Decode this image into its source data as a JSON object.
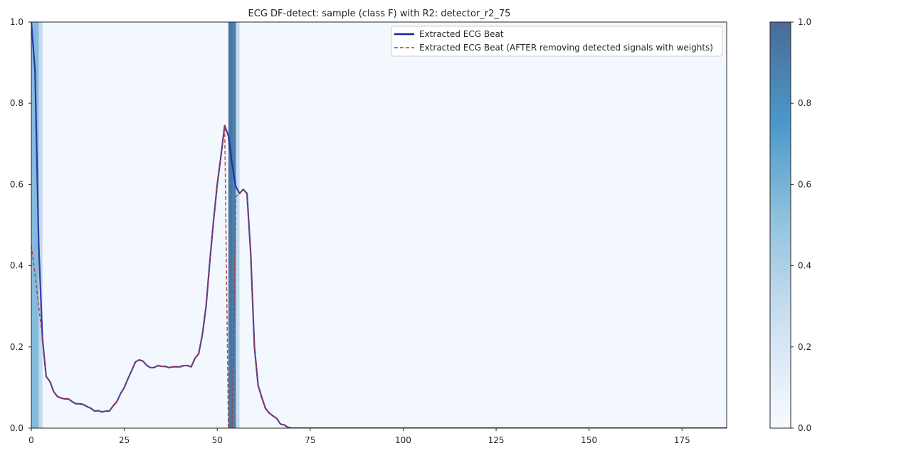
{
  "chart_data": {
    "type": "line",
    "title": "ECG DF-detect: sample (class F) with R2: detector_r2_75",
    "xlabel": "",
    "ylabel": "",
    "xlim": [
      0,
      187
    ],
    "ylim": [
      0,
      1
    ],
    "x_ticks": [
      0,
      25,
      50,
      75,
      100,
      125,
      150,
      175
    ],
    "y_ticks": [
      "0.0",
      "0.2",
      "0.4",
      "0.6",
      "0.8",
      "1.0"
    ],
    "grid": false,
    "legend": "top-right",
    "series": [
      {
        "name": "Extracted ECG Beat",
        "color": "#1f1f9e",
        "style": "solid",
        "values": [
          1.0,
          0.88,
          0.45,
          0.22,
          0.127,
          0.115,
          0.09,
          0.078,
          0.074,
          0.072,
          0.072,
          0.065,
          0.06,
          0.06,
          0.058,
          0.053,
          0.049,
          0.042,
          0.043,
          0.04,
          0.042,
          0.042,
          0.055,
          0.065,
          0.085,
          0.1,
          0.122,
          0.142,
          0.163,
          0.168,
          0.165,
          0.155,
          0.149,
          0.149,
          0.154,
          0.152,
          0.152,
          0.149,
          0.151,
          0.151,
          0.151,
          0.154,
          0.154,
          0.151,
          0.172,
          0.183,
          0.23,
          0.3,
          0.41,
          0.51,
          0.6,
          0.67,
          0.745,
          0.72,
          0.65,
          0.595,
          0.578,
          0.588,
          0.578,
          0.43,
          0.2,
          0.105,
          0.075,
          0.048,
          0.037,
          0.03,
          0.024,
          0.01,
          0.008,
          0.002,
          0.0,
          0.0,
          0.0,
          0.0,
          0.0,
          0.0,
          0.0,
          0.0,
          0.0,
          0.0,
          0.0,
          0.0,
          0.0,
          0.0,
          0.0,
          0.0,
          0.0,
          0.0,
          0.0,
          0.0,
          0.0,
          0.0,
          0.0,
          0.0,
          0.0,
          0.0,
          0.0,
          0.0,
          0.0,
          0.0,
          0.0,
          0.0,
          0.0,
          0.0,
          0.0,
          0.0,
          0.0,
          0.0,
          0.0,
          0.0,
          0.0,
          0.0,
          0.0,
          0.0,
          0.0,
          0.0,
          0.0,
          0.0,
          0.0,
          0.0,
          0.0,
          0.0,
          0.0,
          0.0,
          0.0,
          0.0,
          0.0,
          0.0,
          0.0,
          0.0,
          0.0,
          0.0,
          0.0,
          0.0,
          0.0,
          0.0,
          0.0,
          0.0,
          0.0,
          0.0,
          0.0,
          0.0,
          0.0,
          0.0,
          0.0,
          0.0,
          0.0,
          0.0,
          0.0,
          0.0,
          0.0,
          0.0,
          0.0,
          0.0,
          0.0,
          0.0,
          0.0,
          0.0,
          0.0,
          0.0,
          0.0,
          0.0,
          0.0,
          0.0,
          0.0,
          0.0,
          0.0,
          0.0,
          0.0,
          0.0,
          0.0,
          0.0,
          0.0,
          0.0,
          0.0,
          0.0,
          0.0,
          0.0,
          0.0,
          0.0,
          0.0,
          0.0,
          0.0,
          0.0,
          0.0,
          0.0,
          0.0,
          0.0,
          0.0,
          0.0,
          0.0,
          0.0,
          0.0
        ]
      },
      {
        "name": "Extracted ECG Beat (AFTER removing detected signals with weights)",
        "color": "#b03a3a",
        "style": "dashed",
        "values": [
          0.45,
          0.38,
          0.3,
          0.22,
          0.127,
          0.115,
          0.09,
          0.078,
          0.074,
          0.072,
          0.072,
          0.065,
          0.06,
          0.06,
          0.058,
          0.053,
          0.049,
          0.042,
          0.043,
          0.04,
          0.042,
          0.042,
          0.055,
          0.065,
          0.085,
          0.1,
          0.122,
          0.142,
          0.163,
          0.168,
          0.165,
          0.155,
          0.149,
          0.149,
          0.154,
          0.152,
          0.152,
          0.149,
          0.151,
          0.151,
          0.151,
          0.154,
          0.154,
          0.151,
          0.172,
          0.183,
          0.23,
          0.3,
          0.41,
          0.51,
          0.6,
          0.67,
          0.745,
          0.0,
          0.0,
          0.57,
          0.578,
          0.588,
          0.578,
          0.43,
          0.2,
          0.105,
          0.075,
          0.048,
          0.037,
          0.03,
          0.024,
          0.01,
          0.008,
          0.002,
          0.0,
          0.0,
          0.0,
          0.0,
          0.0,
          0.0,
          0.0,
          0.0,
          0.0,
          0.0,
          0.0,
          0.0,
          0.0,
          0.0,
          0.0,
          0.0,
          0.0,
          0.0,
          0.0,
          0.0,
          0.0,
          0.0,
          0.0,
          0.0,
          0.0,
          0.0,
          0.0,
          0.0,
          0.0,
          0.0,
          0.0,
          0.0,
          0.0,
          0.0,
          0.0,
          0.0,
          0.0,
          0.0,
          0.0,
          0.0,
          0.0,
          0.0,
          0.0,
          0.0,
          0.0,
          0.0,
          0.0,
          0.0,
          0.0,
          0.0,
          0.0,
          0.0,
          0.0,
          0.0,
          0.0,
          0.0,
          0.0,
          0.0,
          0.0,
          0.0,
          0.0,
          0.0,
          0.0,
          0.0,
          0.0,
          0.0,
          0.0,
          0.0,
          0.0,
          0.0,
          0.0,
          0.0,
          0.0,
          0.0,
          0.0,
          0.0,
          0.0,
          0.0,
          0.0,
          0.0,
          0.0,
          0.0,
          0.0,
          0.0,
          0.0,
          0.0,
          0.0,
          0.0,
          0.0,
          0.0,
          0.0,
          0.0,
          0.0,
          0.0,
          0.0,
          0.0,
          0.0,
          0.0,
          0.0,
          0.0,
          0.0,
          0.0,
          0.0,
          0.0,
          0.0,
          0.0,
          0.0,
          0.0,
          0.0,
          0.0,
          0.0,
          0.0,
          0.0,
          0.0,
          0.0,
          0.0,
          0.0,
          0.0,
          0.0,
          0.0,
          0.0,
          0.0
        ]
      }
    ],
    "heatmap_background": {
      "colormap": "Blues",
      "default_weight": 0.03,
      "weights_by_index": {
        "0": 0.55,
        "1": 0.55,
        "2": 0.3,
        "53": 0.95,
        "54": 0.9,
        "55": 0.3
      }
    },
    "colorbar": {
      "range": [
        0,
        1
      ],
      "ticks": [
        "0.0",
        "0.2",
        "0.4",
        "0.6",
        "0.8",
        "1.0"
      ]
    }
  }
}
